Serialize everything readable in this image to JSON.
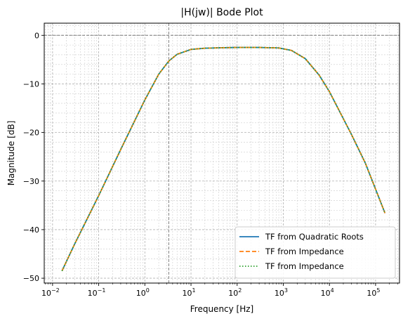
{
  "chart_data": {
    "type": "line",
    "title": "|H(jw)| Bode Plot",
    "xlabel": "Frequency [Hz]",
    "ylabel": "Magnitude [dB]",
    "xscale": "log",
    "xlim": [
      0.0066,
      330000
    ],
    "ylim": [
      -51,
      2.5
    ],
    "x_ticks": [
      {
        "value": 0.01,
        "base": "10",
        "exp": "−2"
      },
      {
        "value": 0.1,
        "base": "10",
        "exp": "−1"
      },
      {
        "value": 1,
        "base": "10",
        "exp": "0"
      },
      {
        "value": 10,
        "base": "10",
        "exp": "1"
      },
      {
        "value": 100,
        "base": "10",
        "exp": "2"
      },
      {
        "value": 1000,
        "base": "10",
        "exp": "3"
      },
      {
        "value": 10000,
        "base": "10",
        "exp": "4"
      },
      {
        "value": 100000,
        "base": "10",
        "exp": "5"
      }
    ],
    "y_ticks": [
      {
        "value": 0,
        "label": "0"
      },
      {
        "value": -10,
        "label": "−10"
      },
      {
        "value": -20,
        "label": "−20"
      },
      {
        "value": -30,
        "label": "−30"
      },
      {
        "value": -40,
        "label": "−40"
      },
      {
        "value": -50,
        "label": "−50"
      }
    ],
    "grid": true,
    "grid_minor": true,
    "reference_lines": {
      "y": 0,
      "x": 3.3
    },
    "x": [
      0.016,
      0.03,
      0.1,
      0.3,
      1,
      2,
      3.3,
      5,
      10,
      20,
      50,
      100,
      300,
      800,
      1500,
      3000,
      6000,
      10000,
      30000,
      60000,
      160000
    ],
    "series": [
      {
        "name": "TF from Quadratic Roots",
        "color": "#1f77b4",
        "style": "solid",
        "values": [
          -48.5,
          -43.0,
          -33.0,
          -23.5,
          -13.3,
          -8.0,
          -5.3,
          -3.9,
          -2.9,
          -2.65,
          -2.55,
          -2.5,
          -2.5,
          -2.6,
          -3.1,
          -4.8,
          -8.2,
          -11.6,
          -20.4,
          -26.3,
          -36.6
        ]
      },
      {
        "name": "TF from Impedance",
        "color": "#ff7f0e",
        "style": "dashed",
        "values": [
          -48.5,
          -43.0,
          -33.0,
          -23.5,
          -13.3,
          -8.0,
          -5.3,
          -3.9,
          -2.9,
          -2.65,
          -2.55,
          -2.5,
          -2.5,
          -2.6,
          -3.1,
          -4.8,
          -8.2,
          -11.6,
          -20.4,
          -26.3,
          -36.6
        ]
      },
      {
        "name": "TF from Impedance",
        "color": "#2ca02c",
        "style": "dotted",
        "values": [
          -48.5,
          -43.0,
          -33.0,
          -23.5,
          -13.3,
          -8.0,
          -5.3,
          -3.9,
          -2.9,
          -2.65,
          -2.55,
          -2.5,
          -2.5,
          -2.6,
          -3.1,
          -4.8,
          -8.2,
          -11.6,
          -20.4,
          -26.3,
          -36.6
        ]
      }
    ],
    "legend": {
      "position": "bottom-right"
    }
  }
}
